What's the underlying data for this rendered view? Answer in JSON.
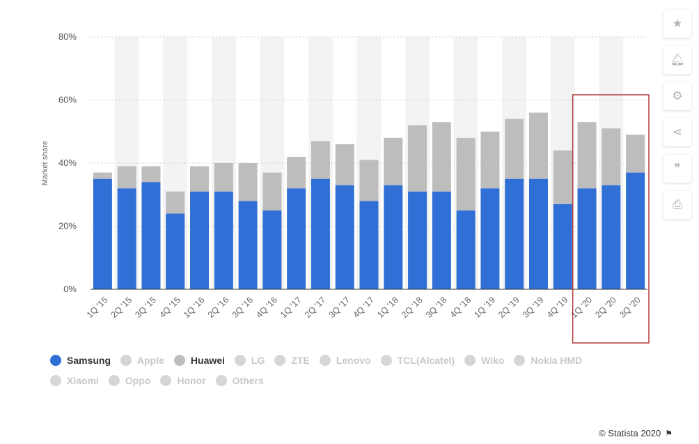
{
  "chart_data": {
    "type": "bar",
    "stacked": true,
    "categories": [
      "1Q '15",
      "2Q '15",
      "3Q '15",
      "4Q '15",
      "1Q '16",
      "2Q '16",
      "3Q '16",
      "4Q '16",
      "1Q '17",
      "2Q '17",
      "3Q '17",
      "4Q '17",
      "1Q '18",
      "2Q '18",
      "3Q '18",
      "4Q '18",
      "1Q '19",
      "2Q '19",
      "3Q '19",
      "4Q '19",
      "1Q '20",
      "2Q '20",
      "3Q '20"
    ],
    "series": [
      {
        "name": "Samsung",
        "values": [
          35,
          32,
          34,
          24,
          31,
          31,
          28,
          25,
          32,
          35,
          33,
          28,
          33,
          31,
          31,
          25,
          32,
          35,
          35,
          27,
          32,
          33,
          37
        ]
      },
      {
        "name": "Huawei",
        "values": [
          2,
          7,
          5,
          7,
          8,
          9,
          12,
          12,
          10,
          12,
          13,
          13,
          15,
          21,
          22,
          23,
          18,
          19,
          21,
          17,
          21,
          18,
          12
        ]
      }
    ],
    "ylabel": "Market share",
    "ylim": [
      0,
      80
    ],
    "yticks": [
      "0%",
      "20%",
      "40%",
      "60%",
      "80%"
    ],
    "grid": true,
    "highlight": {
      "categories": [
        "1Q '20",
        "2Q '20",
        "3Q '20"
      ],
      "color": "#b03a3a"
    },
    "legend": {
      "placement": "bottom-left",
      "row1": [
        {
          "label": "Samsung",
          "active": true,
          "color": "#2f6fd6"
        },
        {
          "label": "Apple",
          "active": false,
          "color": "#d6d6d6"
        },
        {
          "label": "Huawei",
          "active": true,
          "color": "#bdbdbd"
        },
        {
          "label": "LG",
          "active": false,
          "color": "#d6d6d6"
        },
        {
          "label": "ZTE",
          "active": false,
          "color": "#d6d6d6"
        },
        {
          "label": "Lenovo",
          "active": false,
          "color": "#d6d6d6"
        },
        {
          "label": "TCL(Alcatel)",
          "active": false,
          "color": "#d6d6d6"
        },
        {
          "label": "Wiko",
          "active": false,
          "color": "#d6d6d6"
        },
        {
          "label": "Nokia HMD",
          "active": false,
          "color": "#d6d6d6"
        }
      ],
      "row2": [
        {
          "label": "Xiaomi",
          "active": false,
          "color": "#d6d6d6"
        },
        {
          "label": "Oppo",
          "active": false,
          "color": "#d6d6d6"
        },
        {
          "label": "Honor",
          "active": false,
          "color": "#d6d6d6"
        },
        {
          "label": "Others",
          "active": false,
          "color": "#d6d6d6"
        }
      ]
    },
    "colors": {
      "samsung": "#2f6fd6",
      "huawei": "#bdbdbd",
      "band": "#f3f3f3",
      "grid": "#cccccc",
      "axis": "#333333"
    }
  },
  "toolbar": [
    {
      "name": "star-icon",
      "glyph": "★"
    },
    {
      "name": "bell-icon",
      "glyph": "🔔︎"
    },
    {
      "name": "gear-icon",
      "glyph": "⚙"
    },
    {
      "name": "share-icon",
      "glyph": "⋖"
    },
    {
      "name": "quote-icon",
      "glyph": "❞"
    },
    {
      "name": "print-icon",
      "glyph": "⎙"
    }
  ],
  "footer": {
    "credit": "© Statista 2020",
    "flag_icon": "⚑"
  }
}
